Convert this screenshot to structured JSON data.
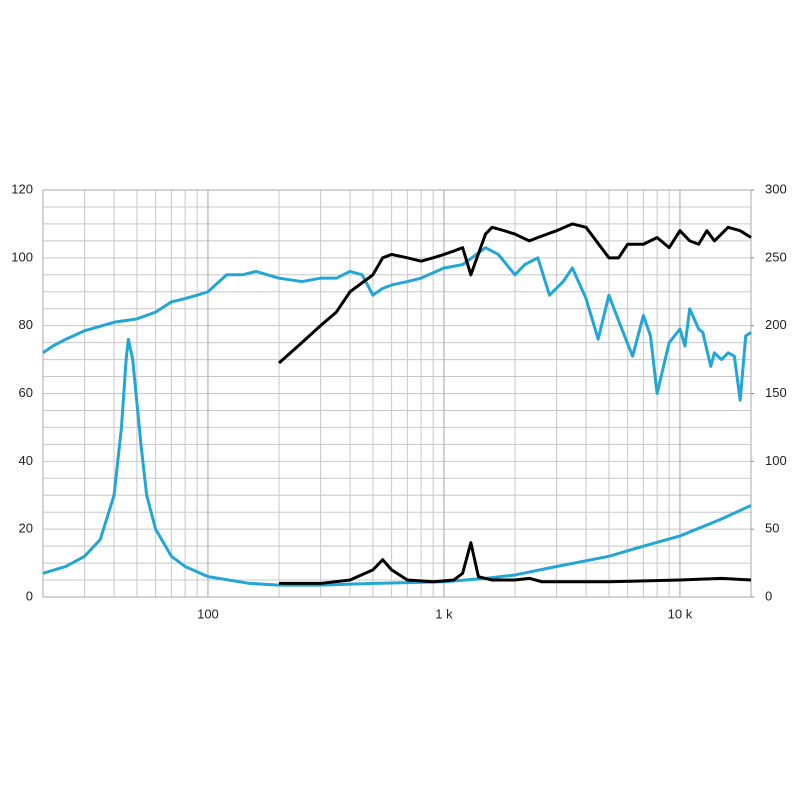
{
  "chart_data": {
    "type": "line",
    "xscale": "log",
    "grid": true,
    "xlim": [
      20,
      20000
    ],
    "xticks": [
      {
        "value": 100,
        "label": "100"
      },
      {
        "value": 1000,
        "label": "1 k"
      },
      {
        "value": 10000,
        "label": "10 k"
      }
    ],
    "ylim": [
      0,
      120
    ],
    "yticks": [
      0,
      20,
      40,
      60,
      80,
      100,
      120
    ],
    "y2lim": [
      0,
      300
    ],
    "y2ticks": [
      0,
      50,
      100,
      150,
      200,
      250,
      300
    ],
    "series": [
      {
        "color": "#23a6d5",
        "x": [
          20,
          22,
          25,
          30,
          40,
          50,
          60,
          70,
          80,
          90,
          100,
          120,
          140,
          160,
          200,
          250,
          300,
          350,
          400,
          450,
          500,
          550,
          600,
          700,
          800,
          1000,
          1200,
          1500,
          1700,
          2000,
          2200,
          2500,
          2800,
          3200,
          3500,
          4000,
          4500,
          5000,
          5600,
          6300,
          7000,
          7500,
          8000,
          9000,
          10000,
          10500,
          11000,
          12000,
          12500,
          13500,
          14000,
          15000,
          16000,
          17000,
          18000,
          19000,
          20000
        ],
        "values": [
          72,
          74,
          76,
          78.5,
          81,
          82,
          84,
          87,
          88,
          89,
          90,
          95,
          95,
          96,
          94,
          93,
          94,
          94,
          96,
          95,
          89,
          91,
          92,
          93,
          94,
          97,
          98,
          103,
          101,
          95,
          98,
          100,
          89,
          93,
          97,
          88,
          76,
          89,
          80,
          71,
          83,
          77,
          60,
          75,
          79,
          74,
          85,
          79,
          78,
          68,
          72,
          70,
          72,
          71,
          58,
          77,
          78
        ]
      },
      {
        "color": "#000000",
        "x": [
          200,
          250,
          300,
          350,
          400,
          500,
          550,
          600,
          700,
          800,
          900,
          1000,
          1100,
          1200,
          1300,
          1500,
          1600,
          1800,
          2000,
          2300,
          2500,
          3000,
          3500,
          4000,
          5000,
          5500,
          6000,
          7000,
          8000,
          9000,
          10000,
          11000,
          12000,
          13000,
          14000,
          16000,
          18000,
          20000
        ],
        "values": [
          69,
          75,
          80,
          84,
          90,
          95,
          100,
          101,
          100,
          99,
          100,
          101,
          102,
          103,
          95,
          107,
          109,
          108,
          107,
          105,
          106,
          108,
          110,
          109,
          100,
          100,
          104,
          104,
          106,
          103,
          108,
          105,
          104,
          108,
          105,
          109,
          108,
          106
        ]
      },
      {
        "color": "#23a6d5",
        "x": [
          20,
          25,
          30,
          35,
          40,
          43,
          45,
          46,
          48,
          52,
          55,
          60,
          70,
          80,
          100,
          150,
          200,
          300,
          500,
          1000,
          1500,
          2000,
          3000,
          5000,
          7000,
          10000,
          15000,
          20000
        ],
        "values": [
          7,
          9,
          12,
          17,
          30,
          50,
          70,
          76,
          70,
          45,
          30,
          20,
          12,
          9,
          6,
          4,
          3.5,
          3.5,
          4,
          4.5,
          5.5,
          6.5,
          9,
          12,
          15,
          18,
          23,
          27
        ]
      },
      {
        "color": "#000000",
        "x": [
          200,
          300,
          400,
          500,
          550,
          600,
          700,
          900,
          1100,
          1200,
          1300,
          1400,
          1600,
          2000,
          2300,
          2600,
          5000,
          10000,
          15000,
          20000
        ],
        "values": [
          4,
          4,
          5,
          8,
          11,
          8,
          5,
          4.5,
          5,
          7,
          16,
          6,
          5,
          5,
          5.5,
          4.5,
          4.5,
          5,
          5.5,
          5
        ]
      }
    ]
  }
}
